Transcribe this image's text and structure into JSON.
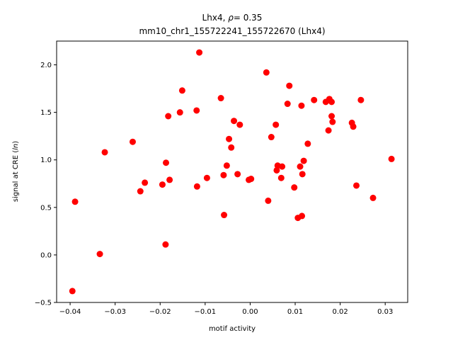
{
  "chart_data": {
    "type": "scatter",
    "title_line1_name": "Lhx4",
    "title_line1_rho_sym": "ρ",
    "title_line1_rho_value": "= 0.35",
    "title_line2": "mm10_chr1_155722241_155722670 (Lhx4)",
    "xlabel": "motif activity",
    "ylabel_prefix": "signal at CRE (",
    "ylabel_italic": "ln",
    "ylabel_suffix": ")",
    "xlim": [
      -0.043,
      0.035
    ],
    "ylim": [
      -0.5,
      2.25
    ],
    "xticks": [
      -0.04,
      -0.03,
      -0.02,
      -0.01,
      0.0,
      0.01,
      0.02,
      0.03
    ],
    "xtick_labels": [
      "−0.04",
      "−0.03",
      "−0.02",
      "−0.01",
      "0.00",
      "0.01",
      "0.02",
      "0.03"
    ],
    "yticks": [
      -0.5,
      0.0,
      0.5,
      1.0,
      1.5,
      2.0
    ],
    "ytick_labels": [
      "−0.5",
      "0.0",
      "0.5",
      "1.0",
      "1.5",
      "2.0"
    ],
    "marker_color": "#ff0000",
    "grid": false,
    "points": [
      {
        "x": -0.0395,
        "y": -0.38
      },
      {
        "x": -0.0389,
        "y": 0.56
      },
      {
        "x": -0.0334,
        "y": 0.01
      },
      {
        "x": -0.0323,
        "y": 1.08
      },
      {
        "x": -0.0261,
        "y": 1.19
      },
      {
        "x": -0.0244,
        "y": 0.67
      },
      {
        "x": -0.0234,
        "y": 0.76
      },
      {
        "x": -0.0195,
        "y": 0.74
      },
      {
        "x": -0.0188,
        "y": 0.11
      },
      {
        "x": -0.0187,
        "y": 0.97
      },
      {
        "x": -0.0182,
        "y": 1.46
      },
      {
        "x": -0.0179,
        "y": 0.79
      },
      {
        "x": -0.0156,
        "y": 1.5
      },
      {
        "x": -0.0151,
        "y": 1.73
      },
      {
        "x": -0.0119,
        "y": 1.52
      },
      {
        "x": -0.0118,
        "y": 0.72
      },
      {
        "x": -0.0113,
        "y": 2.13
      },
      {
        "x": -0.0096,
        "y": 0.81
      },
      {
        "x": -0.0065,
        "y": 1.65
      },
      {
        "x": -0.0059,
        "y": 0.84
      },
      {
        "x": -0.0058,
        "y": 0.42
      },
      {
        "x": -0.0052,
        "y": 0.94
      },
      {
        "x": -0.0047,
        "y": 1.22
      },
      {
        "x": -0.0042,
        "y": 1.13
      },
      {
        "x": -0.0036,
        "y": 1.41
      },
      {
        "x": -0.0028,
        "y": 0.85
      },
      {
        "x": -0.0023,
        "y": 1.37
      },
      {
        "x": -0.0003,
        "y": 0.79
      },
      {
        "x": 0.0002,
        "y": 0.8
      },
      {
        "x": 0.0036,
        "y": 1.92
      },
      {
        "x": 0.004,
        "y": 0.57
      },
      {
        "x": 0.0047,
        "y": 1.24
      },
      {
        "x": 0.0057,
        "y": 1.37
      },
      {
        "x": 0.0059,
        "y": 0.89
      },
      {
        "x": 0.0061,
        "y": 0.94
      },
      {
        "x": 0.0069,
        "y": 0.81
      },
      {
        "x": 0.0071,
        "y": 0.93
      },
      {
        "x": 0.0083,
        "y": 1.59
      },
      {
        "x": 0.0087,
        "y": 1.78
      },
      {
        "x": 0.0098,
        "y": 0.71
      },
      {
        "x": 0.0106,
        "y": 0.39
      },
      {
        "x": 0.0111,
        "y": 0.93
      },
      {
        "x": 0.0114,
        "y": 1.57
      },
      {
        "x": 0.0115,
        "y": 0.41
      },
      {
        "x": 0.0116,
        "y": 0.85
      },
      {
        "x": 0.0119,
        "y": 0.99
      },
      {
        "x": 0.0128,
        "y": 1.17
      },
      {
        "x": 0.0142,
        "y": 1.63
      },
      {
        "x": 0.0168,
        "y": 1.61
      },
      {
        "x": 0.0174,
        "y": 1.31
      },
      {
        "x": 0.0176,
        "y": 1.64
      },
      {
        "x": 0.0181,
        "y": 1.61
      },
      {
        "x": 0.0181,
        "y": 1.46
      },
      {
        "x": 0.0183,
        "y": 1.4
      },
      {
        "x": 0.0226,
        "y": 1.39
      },
      {
        "x": 0.0229,
        "y": 1.35
      },
      {
        "x": 0.0236,
        "y": 0.73
      },
      {
        "x": 0.0246,
        "y": 1.63
      },
      {
        "x": 0.0273,
        "y": 0.6
      },
      {
        "x": 0.0314,
        "y": 1.01
      }
    ]
  }
}
